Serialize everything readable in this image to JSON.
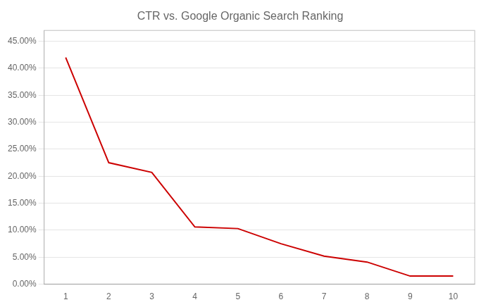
{
  "chart_data": {
    "type": "line",
    "title": "CTR vs. Google Organic Search Ranking",
    "x": [
      1,
      2,
      3,
      4,
      5,
      6,
      7,
      8,
      9,
      10
    ],
    "values": [
      0.42,
      0.225,
      0.207,
      0.106,
      0.103,
      0.075,
      0.052,
      0.041,
      0.015,
      0.015
    ],
    "color": "#cc0000",
    "xlim": [
      0.5,
      10.5
    ],
    "xticks": [
      1,
      2,
      3,
      4,
      5,
      6,
      7,
      8,
      9,
      10
    ],
    "ylim": [
      0.0,
      0.47
    ],
    "yticks": [
      {
        "value": 0.0,
        "label": "0.00%"
      },
      {
        "value": 0.05,
        "label": "5.00%"
      },
      {
        "value": 0.1,
        "label": "10.00%"
      },
      {
        "value": 0.15,
        "label": "15.00%"
      },
      {
        "value": 0.2,
        "label": "20.00%"
      },
      {
        "value": 0.25,
        "label": "25.00%"
      },
      {
        "value": 0.3,
        "label": "30.00%"
      },
      {
        "value": 0.35,
        "label": "35.00%"
      },
      {
        "value": 0.4,
        "label": "40.00%"
      },
      {
        "value": 0.45,
        "label": "45.00%"
      }
    ],
    "grid": true
  }
}
